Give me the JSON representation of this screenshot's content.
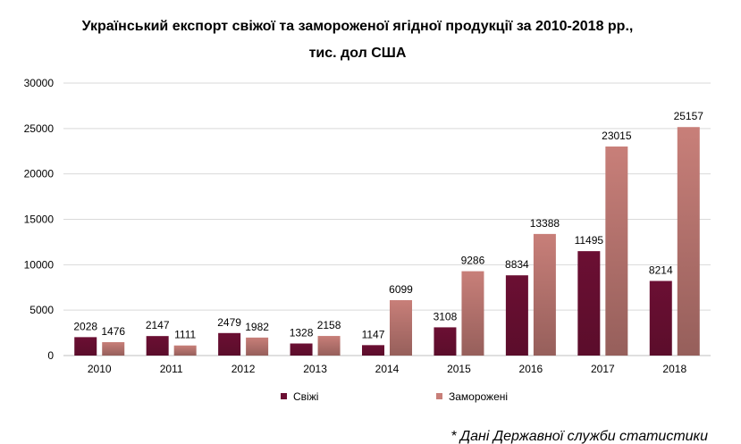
{
  "chart_data": {
    "type": "bar",
    "title_line1": "Український експорт свіжої та замороженої ягідної продукції за 2010-2018 рр.,",
    "title_line2": "тис. дол США",
    "categories": [
      "2010",
      "2011",
      "2012",
      "2013",
      "2014",
      "2015",
      "2016",
      "2017",
      "2018"
    ],
    "series": [
      {
        "name": "Свіжі",
        "color": "#6b0f33",
        "values": [
          2028,
          2147,
          2479,
          1328,
          1147,
          3108,
          8834,
          11495,
          8214
        ]
      },
      {
        "name": "Заморожені",
        "color": "#c87f79",
        "values": [
          1476,
          1111,
          1982,
          2158,
          6099,
          9286,
          13388,
          23015,
          25157
        ]
      }
    ],
    "ylim": [
      0,
      30000
    ],
    "yticks": [
      0,
      5000,
      10000,
      15000,
      20000,
      25000,
      30000
    ],
    "grid": true,
    "legend_position": "bottom",
    "source_note": "* Дані Державної служби статистики"
  }
}
